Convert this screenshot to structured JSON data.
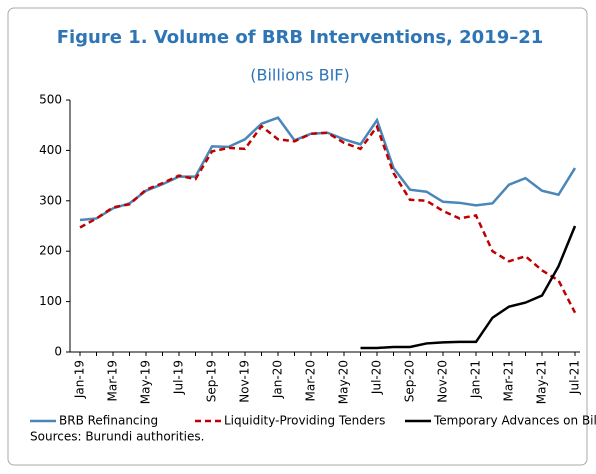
{
  "chart_data": {
    "type": "line",
    "title": "Figure 1. Volume of BRB Interventions, 2019–21",
    "subtitle": "(Billions BIF)",
    "categories": [
      "Jan-19",
      null,
      "Mar-19",
      null,
      "May-19",
      null,
      "Jul-19",
      null,
      "Sep-19",
      null,
      "Nov-19",
      null,
      "Jan-20",
      null,
      "Mar-20",
      null,
      "May-20",
      null,
      "Jul-20",
      null,
      "Sep-20",
      null,
      "Nov-20",
      null,
      "Jan-21",
      null,
      "Mar-21",
      null,
      "May-21",
      null,
      "Jul-21"
    ],
    "series": [
      {
        "name": "BRB Refinancing",
        "color": "#4a86b8",
        "dash": false,
        "values": [
          262,
          265,
          285,
          295,
          320,
          333,
          348,
          348,
          408,
          407,
          422,
          453,
          465,
          420,
          433,
          435,
          422,
          412,
          460,
          365,
          322,
          318,
          298,
          296,
          291,
          295,
          332,
          345,
          320,
          312,
          365
        ]
      },
      {
        "name": "Liquidity-Providing Tenders",
        "color": "#c00000",
        "dash": true,
        "values": [
          247,
          265,
          287,
          293,
          322,
          335,
          350,
          343,
          398,
          405,
          403,
          448,
          422,
          418,
          433,
          435,
          415,
          403,
          447,
          355,
          302,
          300,
          280,
          265,
          271,
          200,
          180,
          190,
          162,
          142,
          78
        ]
      },
      {
        "name": "Temporary Advances on Bills",
        "color": "#000000",
        "dash": false,
        "values": [
          null,
          null,
          null,
          null,
          null,
          null,
          null,
          null,
          null,
          null,
          null,
          null,
          null,
          null,
          null,
          null,
          null,
          8,
          8,
          10,
          10,
          17,
          19,
          20,
          20,
          68,
          90,
          98,
          112,
          170,
          250
        ]
      }
    ],
    "ylim": [
      0,
      500
    ],
    "yticks": [
      0,
      100,
      200,
      300,
      400,
      500
    ],
    "grid": false,
    "legend": "bottom",
    "source": "Sources: Burundi authorities."
  }
}
